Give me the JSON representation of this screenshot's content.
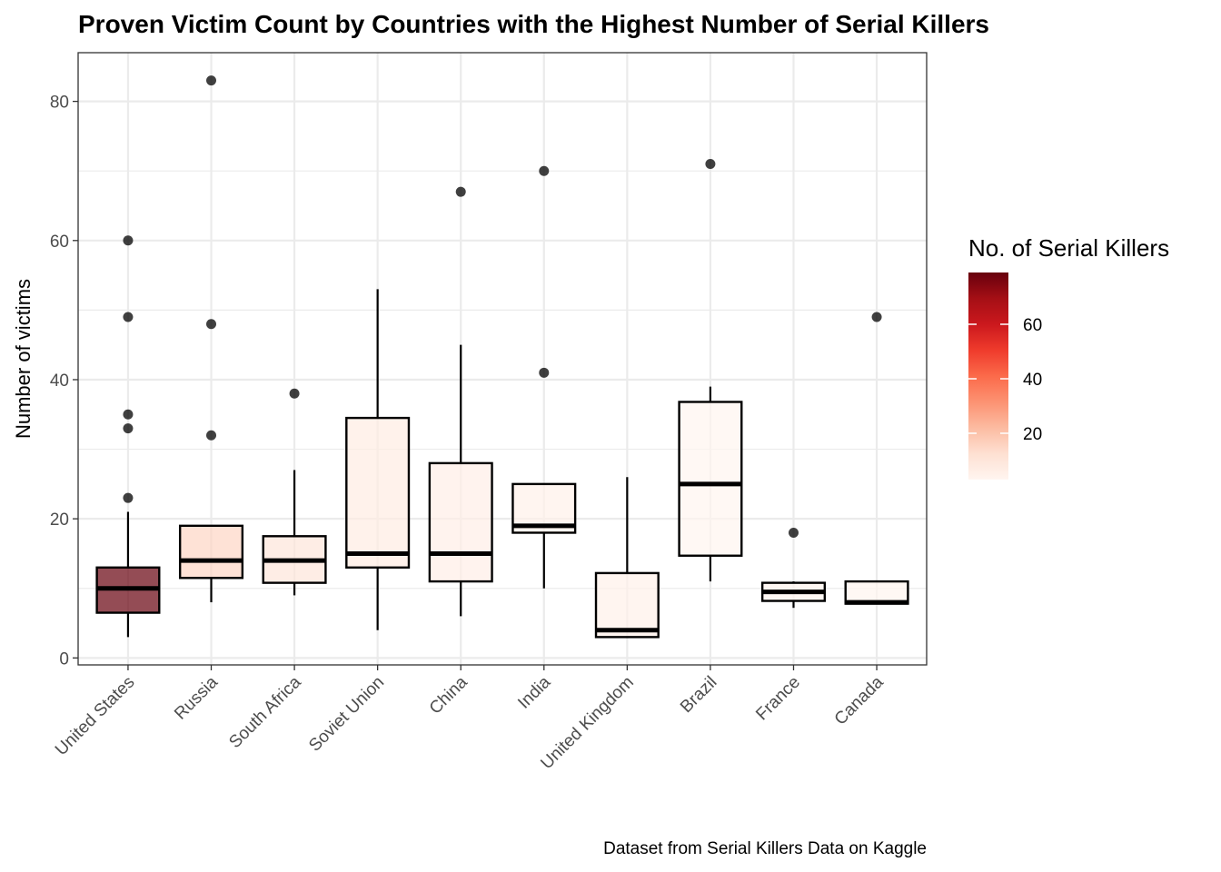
{
  "chart_data": {
    "type": "boxplot",
    "title": "Proven Victim Count by Countries with the Highest Number of Serial Killers",
    "xlabel": "",
    "ylabel": "Number of victims",
    "caption": "Dataset from Serial Killers Data on Kaggle",
    "ylim": [
      -1,
      87
    ],
    "yticks": [
      0,
      20,
      40,
      60,
      80
    ],
    "grid": true,
    "legend": {
      "title": "No. of Serial Killers",
      "placement": "right",
      "type": "colorbar",
      "range": [
        3,
        79
      ],
      "ticks": [
        20,
        40,
        60
      ],
      "color_low": "#fff5f0",
      "color_high": "#67000d"
    },
    "categories": [
      "United States",
      "Russia",
      "South Africa",
      "Soviet Union",
      "China",
      "India",
      "United Kingdom",
      "Brazil",
      "France",
      "Canada"
    ],
    "boxes": [
      {
        "country": "United States",
        "count": 79,
        "min": 3,
        "q1": 6.5,
        "median": 10,
        "q3": 13,
        "max": 21,
        "outliers": [
          23,
          33,
          35,
          49,
          60
        ]
      },
      {
        "country": "Russia",
        "count": 15,
        "min": 8,
        "q1": 11.5,
        "median": 14,
        "q3": 19,
        "max": 19,
        "outliers": [
          32,
          48,
          83
        ]
      },
      {
        "country": "South Africa",
        "count": 10,
        "min": 9,
        "q1": 10.8,
        "median": 14,
        "q3": 17.5,
        "max": 27,
        "outliers": [
          38
        ]
      },
      {
        "country": "Soviet Union",
        "count": 7,
        "min": 4,
        "q1": 13,
        "median": 15,
        "q3": 34.5,
        "max": 53,
        "outliers": []
      },
      {
        "country": "China",
        "count": 6,
        "min": 6,
        "q1": 11,
        "median": 15,
        "q3": 28,
        "max": 45,
        "outliers": [
          67
        ]
      },
      {
        "country": "India",
        "count": 5,
        "min": 10,
        "q1": 18,
        "median": 19,
        "q3": 25,
        "max": 25,
        "outliers": [
          41,
          70
        ]
      },
      {
        "country": "United Kingdom",
        "count": 5,
        "min": 3,
        "q1": 3,
        "median": 4,
        "q3": 12.2,
        "max": 26,
        "outliers": []
      },
      {
        "country": "Brazil",
        "count": 3,
        "min": 11,
        "q1": 14.7,
        "median": 25,
        "q3": 36.8,
        "max": 39,
        "outliers": [
          71
        ]
      },
      {
        "country": "France",
        "count": 3,
        "min": 7.2,
        "q1": 8.2,
        "median": 9.5,
        "q3": 10.8,
        "max": 11,
        "outliers": [
          18
        ]
      },
      {
        "country": "Canada",
        "count": 3,
        "min": 7.8,
        "q1": 7.8,
        "median": 8,
        "q3": 11,
        "max": 11,
        "outliers": [
          49
        ]
      }
    ]
  }
}
